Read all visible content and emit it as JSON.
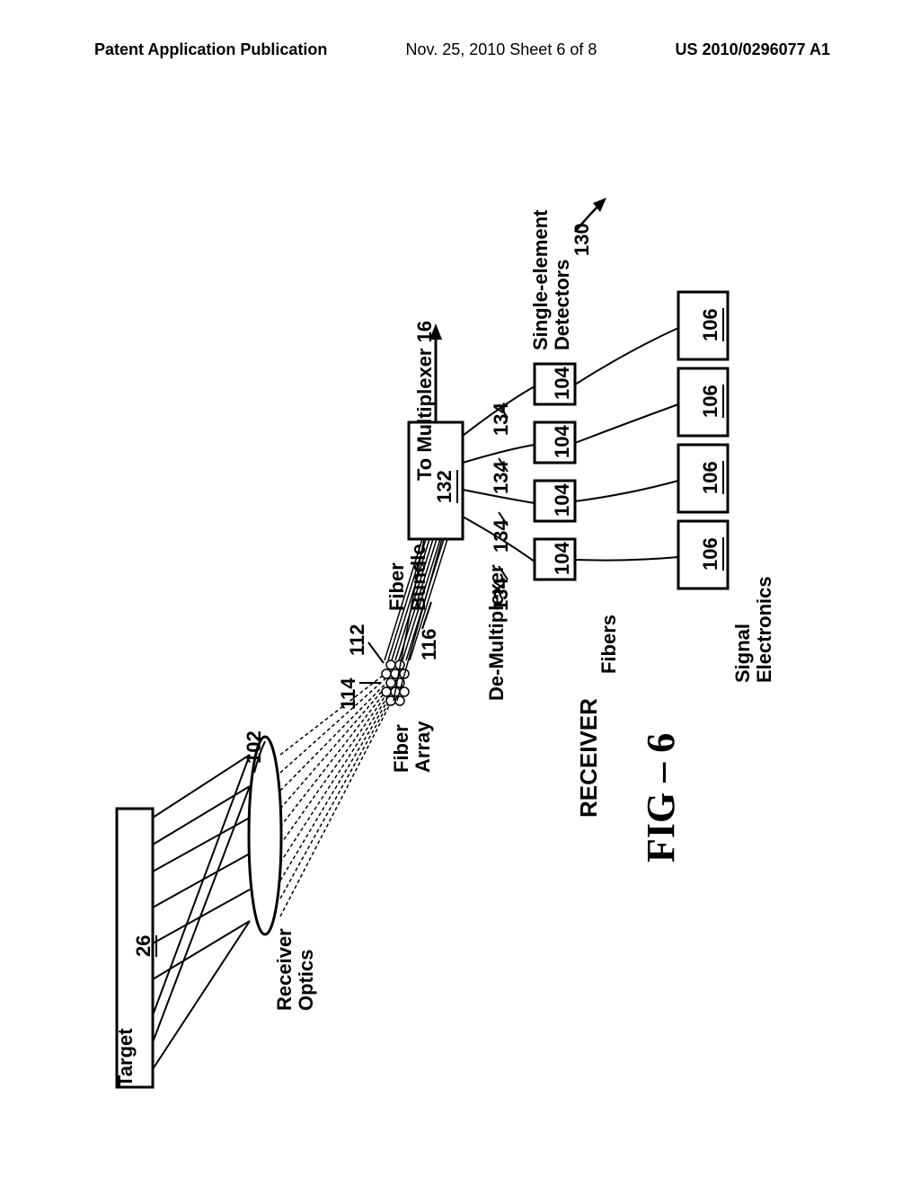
{
  "header": {
    "left": "Patent Application Publication",
    "center": "Nov. 25, 2010  Sheet 6 of 8",
    "right": "US 2010/0296077 A1"
  },
  "labels": {
    "target": "Target",
    "receiver_optics": "Receiver\nOptics",
    "fiber_bundle": "Fiber\nBundle",
    "fiber_array": "Fiber\nArray",
    "to_multiplexer": "To Multiplexer 16",
    "de_multiplexer": "De-Multiplexer",
    "fibers": "Fibers",
    "single_element_detectors": "Single-element\nDetectors",
    "signal_electronics": "Signal\nElectronics",
    "receiver": "RECEIVER"
  },
  "refs": {
    "r26": "26",
    "r102": "102",
    "r112": "112",
    "r114": "114",
    "r116": "116",
    "r130": "130",
    "r132": "132",
    "r134": "134",
    "r104": "104",
    "r106": "106"
  },
  "figure_caption": "FIG – 6",
  "style": {
    "stroke": "#000000",
    "fill_white": "#ffffff",
    "stroke_w_thin": 1.5,
    "stroke_w_med": 2.5,
    "stroke_w_thick": 3.5
  }
}
